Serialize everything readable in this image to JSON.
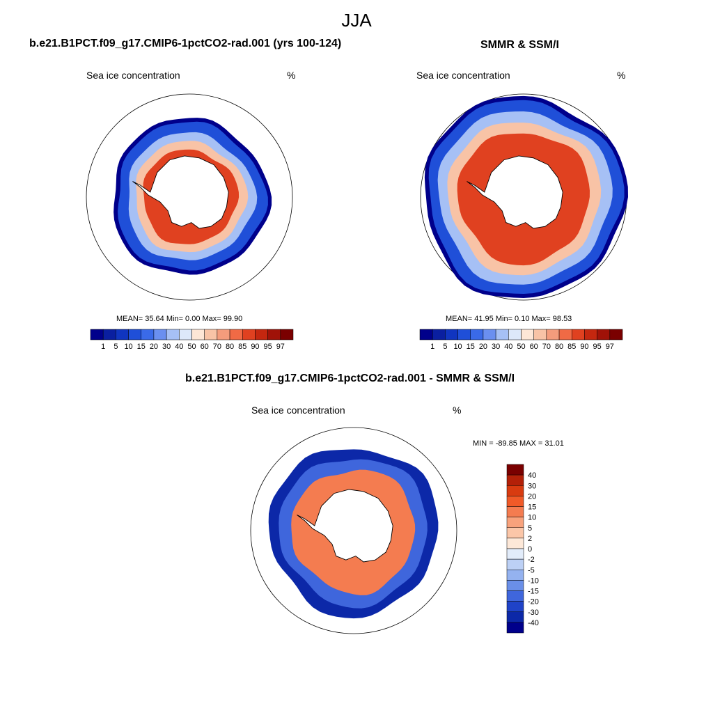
{
  "main_title": "JJA",
  "panels": [
    {
      "title": "b.e21.B1PCT.f09_g17.CMIP6-1pctCO2-rad.001 (yrs 100-124)",
      "left_label": "Sea ice concentration",
      "right_label": "%",
      "stats_text": "MEAN=  35.64  Min=   0.00  Max=  99.90"
    },
    {
      "title": "SMMR & SSM/I",
      "left_label": "Sea ice concentration",
      "right_label": "%",
      "stats_text": "MEAN=  41.95  Min=   0.10  Max=  98.53"
    },
    {
      "title": "b.e21.B1PCT.f09_g17.CMIP6-1pctCO2-rad.001 - SMMR & SSM/I",
      "left_label": "Sea ice concentration",
      "right_label": "%",
      "stats_text": "MIN = -89.85 MAX =  31.01"
    }
  ],
  "chart_data": [
    {
      "type": "heatmap",
      "projection": "south-polar stereographic",
      "title": "b.e21.B1PCT.f09_g17.CMIP6-1pctCO2-rad.001 (yrs 100-124)",
      "variable": "Sea ice concentration",
      "units": "%",
      "stats": {
        "mean": 35.64,
        "min": 0.0,
        "max": 99.9
      },
      "colorbar_levels": [
        "1",
        "5",
        "10",
        "15",
        "20",
        "30",
        "40",
        "50",
        "60",
        "70",
        "80",
        "85",
        "90",
        "95",
        "97"
      ],
      "colorbar_colors": [
        "#00008b",
        "#0a1fa0",
        "#1035c0",
        "#1f4fd8",
        "#3a6ae8",
        "#6a8ff0",
        "#a6c0f5",
        "#dde8fa",
        "#fde6d6",
        "#f8c3a6",
        "#f49c7c",
        "#f06a45",
        "#e04120",
        "#c4270f",
        "#a01208",
        "#7a0000"
      ],
      "sea_ice_edge_radius": 0.76,
      "ice_bands": [
        {
          "value": 10,
          "radius": 0.72
        },
        {
          "value": 30,
          "radius": 0.62
        },
        {
          "value": 60,
          "radius": 0.54
        },
        {
          "value": 85,
          "radius": 0.46
        }
      ]
    },
    {
      "type": "heatmap",
      "projection": "south-polar stereographic",
      "title": "SMMR & SSM/I",
      "variable": "Sea ice concentration",
      "units": "%",
      "stats": {
        "mean": 41.95,
        "min": 0.1,
        "max": 98.53
      },
      "colorbar_levels": [
        "1",
        "5",
        "10",
        "15",
        "20",
        "30",
        "40",
        "50",
        "60",
        "70",
        "80",
        "85",
        "90",
        "95",
        "97"
      ],
      "colorbar_colors": [
        "#00008b",
        "#0a1fa0",
        "#1035c0",
        "#1f4fd8",
        "#3a6ae8",
        "#6a8ff0",
        "#a6c0f5",
        "#dde8fa",
        "#fde6d6",
        "#f8c3a6",
        "#f49c7c",
        "#f06a45",
        "#e04120",
        "#c4270f",
        "#a01208",
        "#7a0000"
      ],
      "sea_ice_edge_radius": 0.98,
      "ice_bands": [
        {
          "value": 10,
          "radius": 0.94
        },
        {
          "value": 30,
          "radius": 0.84
        },
        {
          "value": 60,
          "radius": 0.74
        },
        {
          "value": 85,
          "radius": 0.64
        }
      ]
    },
    {
      "type": "heatmap",
      "projection": "south-polar stereographic",
      "title": "b.e21.B1PCT.f09_g17.CMIP6-1pctCO2-rad.001 - SMMR & SSM/I",
      "variable": "Sea ice concentration",
      "units": "%",
      "stats": {
        "min": -89.85,
        "max": 31.01
      },
      "colorbar_levels": [
        "40",
        "30",
        "20",
        "15",
        "10",
        "5",
        "2",
        "0",
        "-2",
        "-5",
        "-10",
        "-15",
        "-20",
        "-30",
        "-40"
      ],
      "colorbar_colors": [
        "#7a0000",
        "#b32008",
        "#d83b10",
        "#f05a28",
        "#f47c50",
        "#f8a27c",
        "#fbc6a8",
        "#fde8d8",
        "#e2ecfa",
        "#bcd0f5",
        "#94b2f0",
        "#6a8fe8",
        "#3f66dc",
        "#1f43c8",
        "#0c28a8",
        "#00008b"
      ],
      "difference_bands": [
        {
          "value": -40,
          "radius": 0.82
        },
        {
          "value": -20,
          "radius": 0.72
        },
        {
          "value": 10,
          "radius": 0.6
        }
      ]
    }
  ]
}
